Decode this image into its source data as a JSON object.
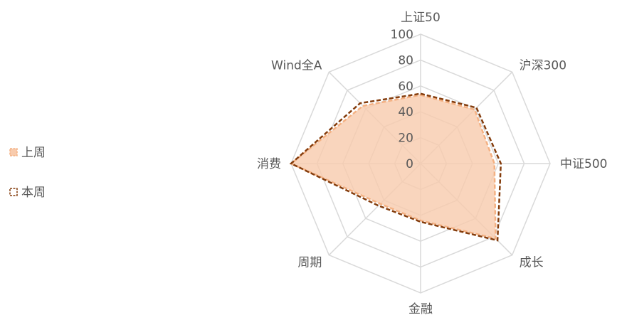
{
  "chart_data": {
    "type": "radar",
    "axes": [
      "上证50",
      "沪深300",
      "中证500",
      "成长",
      "金融",
      "周期",
      "消费",
      "Wind全A"
    ],
    "ticks": [
      "0",
      "20",
      "40",
      "60",
      "80",
      "100"
    ],
    "rlim": [
      0,
      100
    ],
    "grid": true,
    "legend_position": "left",
    "series": [
      {
        "name": "上周",
        "values": [
          53,
          59,
          57,
          82,
          44,
          44,
          100,
          63
        ],
        "fill": "#F8CBAD",
        "stroke": "#F4B183"
      },
      {
        "name": "本周",
        "values": [
          54,
          61,
          62,
          84,
          45,
          46,
          100,
          66
        ],
        "stroke": "#843C0C"
      }
    ]
  }
}
